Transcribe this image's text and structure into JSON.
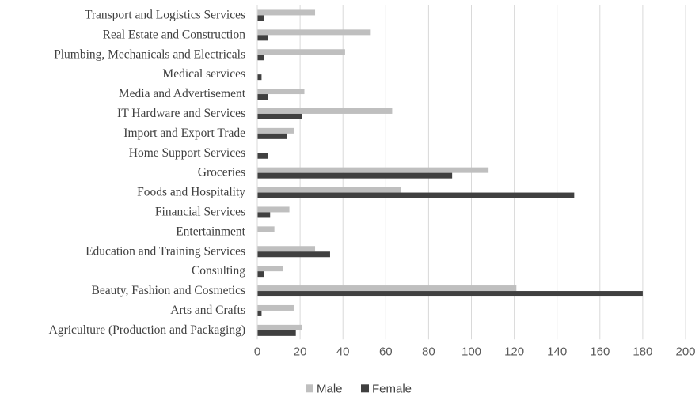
{
  "chart_data": {
    "type": "bar",
    "orientation": "horizontal",
    "categories": [
      "Transport and Logistics Services",
      "Real Estate and Construction",
      "Plumbing, Mechanicals and Electricals",
      "Medical services",
      "Media and Advertisement",
      "IT Hardware and Services",
      "Import and Export Trade",
      "Home Support Services",
      "Groceries",
      "Foods and Hospitality",
      "Financial Services",
      "Entertainment",
      "Education and Training Services",
      "Consulting",
      "Beauty, Fashion and  Cosmetics",
      "Arts and Crafts",
      "Agriculture (Production and Packaging)"
    ],
    "series": [
      {
        "name": "Male",
        "color": "#bfbfbf",
        "values": [
          27,
          53,
          41,
          0,
          22,
          63,
          17,
          0,
          108,
          67,
          15,
          8,
          27,
          12,
          121,
          17,
          21
        ]
      },
      {
        "name": "Female",
        "color": "#404040",
        "values": [
          3,
          5,
          3,
          2,
          5,
          21,
          14,
          5,
          91,
          148,
          6,
          0,
          34,
          3,
          180,
          2,
          18
        ]
      }
    ],
    "xlim": [
      0,
      200
    ],
    "xticks": [
      0,
      20,
      40,
      60,
      80,
      100,
      120,
      140,
      160,
      180,
      200
    ],
    "grid": "vertical",
    "legend_position": "bottom",
    "title": "",
    "xlabel": "",
    "ylabel": ""
  }
}
